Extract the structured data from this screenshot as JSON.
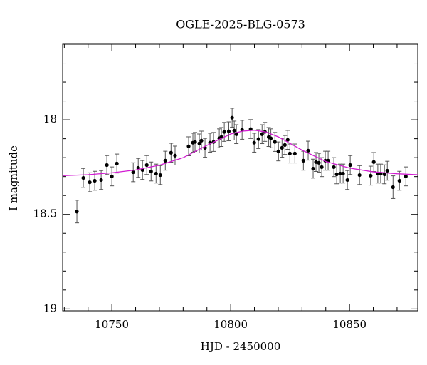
{
  "chart_data": {
    "type": "scatter",
    "title": "OGLE-2025-BLG-0573",
    "x_label": "HJD - 2450000",
    "y_label": "I magnitude",
    "xlim": [
      10729.3,
      10878.7
    ],
    "ylim": [
      19.01,
      17.6
    ],
    "xticks": [
      10750,
      10800,
      10850
    ],
    "yticks": [
      18,
      18.5,
      19
    ],
    "x_minor_ticks": [
      10730,
      10740,
      10760,
      10770,
      10780,
      10790,
      10810,
      10820,
      10830,
      10840,
      10860,
      10870
    ],
    "y_minor_ticks": [
      17.6,
      17.7,
      17.8,
      17.9,
      18.1,
      18.2,
      18.3,
      18.4,
      18.6,
      18.7,
      18.8,
      18.9
    ],
    "series": [
      {
        "mark": "errorbar",
        "color": "#000000",
        "x": [
          10735.3,
          10738.0,
          10740.7,
          10742.8,
          10745.5,
          10747.9,
          10750.0,
          10752.1,
          10759.0,
          10761.1,
          10762.9,
          10764.7,
          10766.5,
          10768.6,
          10770.4,
          10772.5,
          10774.9,
          10776.6,
          10782.3,
          10784.1,
          10785.0,
          10786.8,
          10787.7,
          10789.2,
          10791.3,
          10792.8,
          10795.2,
          10796.1,
          10797.3,
          10799.2,
          10800.6,
          10801.5,
          10802.4,
          10804.8,
          10808.4,
          10809.9,
          10811.7,
          10813.2,
          10814.4,
          10816.0,
          10816.9,
          10818.6,
          10820.1,
          10821.6,
          10822.8,
          10824.0,
          10824.9,
          10827.0,
          10830.6,
          10832.6,
          10834.7,
          10835.9,
          10837.1,
          10838.3,
          10839.8,
          10841.0,
          10843.4,
          10844.6,
          10846.1,
          10847.3,
          10849.1,
          10850.3,
          10854.2,
          10858.9,
          10860.2,
          10861.9,
          10863.1,
          10864.7,
          10865.9,
          10868.3,
          10871.0,
          10873.7
        ],
        "values": [
          18.485,
          18.307,
          18.33,
          18.322,
          18.318,
          18.239,
          18.299,
          18.231,
          18.277,
          18.254,
          18.265,
          18.239,
          18.273,
          18.284,
          18.292,
          18.216,
          18.174,
          18.189,
          18.14,
          18.121,
          18.117,
          18.125,
          18.11,
          18.148,
          18.121,
          18.117,
          18.098,
          18.091,
          18.064,
          18.061,
          17.989,
          18.057,
          18.076,
          18.053,
          18.049,
          18.121,
          18.102,
          18.076,
          18.064,
          18.091,
          18.098,
          18.117,
          18.167,
          18.148,
          18.133,
          18.106,
          18.178,
          18.178,
          18.216,
          18.163,
          18.258,
          18.223,
          18.227,
          18.25,
          18.216,
          18.216,
          18.25,
          18.288,
          18.284,
          18.284,
          18.318,
          18.239,
          18.292,
          18.295,
          18.223,
          18.284,
          18.284,
          18.288,
          18.269,
          18.356,
          18.322,
          18.299
        ],
        "errors": [
          0.06,
          0.05,
          0.05,
          0.05,
          0.05,
          0.05,
          0.05,
          0.05,
          0.05,
          0.05,
          0.05,
          0.05,
          0.05,
          0.05,
          0.05,
          0.05,
          0.05,
          0.05,
          0.05,
          0.05,
          0.05,
          0.05,
          0.05,
          0.05,
          0.05,
          0.05,
          0.05,
          0.05,
          0.05,
          0.05,
          0.05,
          0.05,
          0.05,
          0.05,
          0.05,
          0.05,
          0.05,
          0.05,
          0.05,
          0.05,
          0.05,
          0.05,
          0.05,
          0.05,
          0.05,
          0.05,
          0.05,
          0.05,
          0.05,
          0.05,
          0.05,
          0.05,
          0.05,
          0.05,
          0.05,
          0.05,
          0.05,
          0.05,
          0.05,
          0.05,
          0.05,
          0.05,
          0.05,
          0.05,
          0.05,
          0.05,
          0.05,
          0.05,
          0.05,
          0.06,
          0.05,
          0.05
        ]
      },
      {
        "mark": "line",
        "color": "#d21cd2",
        "x": [
          10729.3,
          10740,
          10750,
          10760,
          10770,
          10780,
          10790,
          10800,
          10805,
          10810,
          10815,
          10820,
          10830,
          10840,
          10850,
          10860,
          10870,
          10878.7
        ],
        "values": [
          18.295,
          18.29,
          18.28,
          18.265,
          18.24,
          18.2,
          18.135,
          18.075,
          18.06,
          18.055,
          18.065,
          18.09,
          18.16,
          18.22,
          18.255,
          18.275,
          18.285,
          18.29
        ]
      }
    ]
  }
}
